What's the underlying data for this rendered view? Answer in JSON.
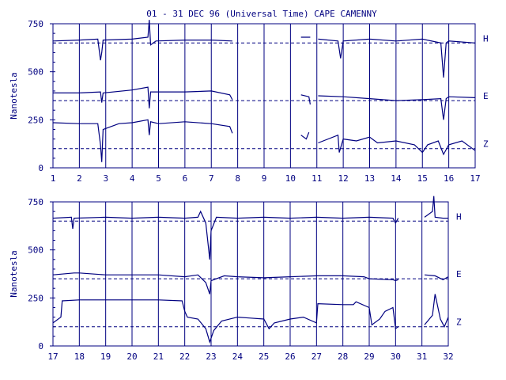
{
  "title": "01 - 31 DEC 96 (Universal Time) CAPE CAMENNY",
  "colors": {
    "trace": "#000080",
    "axis": "#000080",
    "background": "#ffffff"
  },
  "chart_data": [
    {
      "type": "line",
      "ylabel": "Nanotesla",
      "xlim": [
        1,
        17
      ],
      "ylim": [
        0,
        750
      ],
      "x_ticks": [
        "1",
        "2",
        "3",
        "4",
        "5",
        "6",
        "7",
        "8",
        "9",
        "10",
        "11",
        "12",
        "13",
        "14",
        "15",
        "16",
        "17"
      ],
      "y_ticks": [
        "0",
        "250",
        "500",
        "750"
      ],
      "grid": "vertical lines at each day",
      "baselines": [
        {
          "name": "H",
          "value": 650
        },
        {
          "name": "E",
          "value": 350
        },
        {
          "name": "Z",
          "value": 100
        }
      ],
      "series": [
        {
          "name": "H",
          "points": [
            [
              1,
              660
            ],
            [
              2,
              665
            ],
            [
              2.7,
              670
            ],
            [
              2.8,
              560
            ],
            [
              2.85,
              600
            ],
            [
              2.9,
              665
            ],
            [
              4,
              670
            ],
            [
              4.6,
              680
            ],
            [
              4.65,
              770
            ],
            [
              4.7,
              640
            ],
            [
              4.9,
              660
            ],
            [
              6,
              665
            ],
            [
              7,
              665
            ],
            [
              7.8,
              660
            ],
            [
              7.85,
              null
            ],
            [
              10.4,
              680
            ],
            [
              10.75,
              680
            ],
            [
              10.76,
              null
            ],
            [
              11.05,
              670
            ],
            [
              11.8,
              660
            ],
            [
              11.9,
              570
            ],
            [
              12,
              660
            ],
            [
              13,
              670
            ],
            [
              14,
              660
            ],
            [
              15,
              670
            ],
            [
              15.7,
              650
            ],
            [
              15.8,
              470
            ],
            [
              15.9,
              650
            ],
            [
              16,
              660
            ],
            [
              17,
              650
            ]
          ]
        },
        {
          "name": "E",
          "points": [
            [
              1,
              390
            ],
            [
              2,
              390
            ],
            [
              2.8,
              395
            ],
            [
              2.85,
              340
            ],
            [
              2.9,
              390
            ],
            [
              4,
              405
            ],
            [
              4.6,
              420
            ],
            [
              4.65,
              310
            ],
            [
              4.7,
              395
            ],
            [
              6,
              395
            ],
            [
              7,
              400
            ],
            [
              7.7,
              380
            ],
            [
              7.8,
              355
            ],
            [
              7.85,
              null
            ],
            [
              10.4,
              380
            ],
            [
              10.7,
              370
            ],
            [
              10.75,
              330
            ],
            [
              10.76,
              null
            ],
            [
              11.05,
              375
            ],
            [
              12,
              370
            ],
            [
              13,
              360
            ],
            [
              14,
              350
            ],
            [
              15,
              355
            ],
            [
              15.7,
              360
            ],
            [
              15.8,
              250
            ],
            [
              15.9,
              360
            ],
            [
              16,
              370
            ],
            [
              17,
              365
            ]
          ]
        },
        {
          "name": "Z",
          "points": [
            [
              1,
              235
            ],
            [
              2,
              230
            ],
            [
              2.7,
              230
            ],
            [
              2.8,
              120
            ],
            [
              2.85,
              30
            ],
            [
              2.9,
              200
            ],
            [
              3.5,
              230
            ],
            [
              4,
              235
            ],
            [
              4.6,
              250
            ],
            [
              4.65,
              170
            ],
            [
              4.7,
              240
            ],
            [
              5,
              230
            ],
            [
              6,
              240
            ],
            [
              7,
              230
            ],
            [
              7.7,
              215
            ],
            [
              7.8,
              180
            ],
            [
              7.85,
              null
            ],
            [
              10.4,
              170
            ],
            [
              10.6,
              150
            ],
            [
              10.7,
              185
            ],
            [
              10.75,
              null
            ],
            [
              11.05,
              130
            ],
            [
              11.8,
              170
            ],
            [
              11.85,
              80
            ],
            [
              12,
              150
            ],
            [
              12.5,
              140
            ],
            [
              13,
              160
            ],
            [
              13.3,
              130
            ],
            [
              14,
              140
            ],
            [
              14.7,
              120
            ],
            [
              15,
              80
            ],
            [
              15.2,
              120
            ],
            [
              15.6,
              140
            ],
            [
              15.8,
              70
            ],
            [
              16,
              120
            ],
            [
              16.5,
              140
            ],
            [
              17,
              90
            ]
          ]
        }
      ]
    },
    {
      "type": "line",
      "ylabel": "Nanotesla",
      "xlim": [
        17,
        32
      ],
      "ylim": [
        0,
        750
      ],
      "x_ticks": [
        "17",
        "18",
        "19",
        "20",
        "21",
        "22",
        "23",
        "24",
        "25",
        "26",
        "27",
        "28",
        "29",
        "30",
        "31",
        "32"
      ],
      "y_ticks": [
        "0",
        "250",
        "500",
        "750"
      ],
      "grid": "vertical lines at each day",
      "baselines": [
        {
          "name": "H",
          "value": 650
        },
        {
          "name": "E",
          "value": 350
        },
        {
          "name": "Z",
          "value": 100
        }
      ],
      "series": [
        {
          "name": "H",
          "points": [
            [
              17,
              665
            ],
            [
              17.7,
              670
            ],
            [
              17.75,
              610
            ],
            [
              17.8,
              665
            ],
            [
              19,
              670
            ],
            [
              20,
              665
            ],
            [
              21,
              670
            ],
            [
              22,
              665
            ],
            [
              22.5,
              670
            ],
            [
              22.6,
              700
            ],
            [
              22.8,
              640
            ],
            [
              22.95,
              450
            ],
            [
              23,
              600
            ],
            [
              23.2,
              670
            ],
            [
              24,
              665
            ],
            [
              25,
              670
            ],
            [
              26,
              665
            ],
            [
              27,
              670
            ],
            [
              28,
              665
            ],
            [
              29,
              670
            ],
            [
              29.9,
              665
            ],
            [
              30,
              640
            ],
            [
              30.1,
              665
            ],
            [
              30.11,
              null
            ],
            [
              31.1,
              670
            ],
            [
              31.4,
              700
            ],
            [
              31.45,
              780
            ],
            [
              31.5,
              670
            ],
            [
              31.8,
              665
            ],
            [
              32,
              665
            ]
          ]
        },
        {
          "name": "E",
          "points": [
            [
              17,
              370
            ],
            [
              17.8,
              380
            ],
            [
              18,
              380
            ],
            [
              19,
              370
            ],
            [
              20,
              370
            ],
            [
              21,
              370
            ],
            [
              22,
              360
            ],
            [
              22.5,
              370
            ],
            [
              22.8,
              330
            ],
            [
              22.95,
              270
            ],
            [
              23,
              340
            ],
            [
              23.5,
              365
            ],
            [
              24,
              360
            ],
            [
              25,
              355
            ],
            [
              26,
              360
            ],
            [
              27,
              365
            ],
            [
              28,
              365
            ],
            [
              28.8,
              360
            ],
            [
              29,
              350
            ],
            [
              29.9,
              345
            ],
            [
              30,
              340
            ],
            [
              30.1,
              345
            ],
            [
              30.11,
              null
            ],
            [
              31.1,
              370
            ],
            [
              31.5,
              365
            ],
            [
              31.8,
              345
            ],
            [
              32,
              360
            ]
          ]
        },
        {
          "name": "Z",
          "points": [
            [
              17,
              120
            ],
            [
              17.3,
              150
            ],
            [
              17.35,
              235
            ],
            [
              18,
              240
            ],
            [
              19,
              240
            ],
            [
              20,
              240
            ],
            [
              21,
              240
            ],
            [
              21.9,
              235
            ],
            [
              22,
              180
            ],
            [
              22.1,
              150
            ],
            [
              22.5,
              140
            ],
            [
              22.8,
              90
            ],
            [
              22.95,
              20
            ],
            [
              23.1,
              80
            ],
            [
              23.4,
              130
            ],
            [
              24,
              150
            ],
            [
              24.5,
              145
            ],
            [
              25,
              140
            ],
            [
              25.2,
              90
            ],
            [
              25.4,
              120
            ],
            [
              26,
              140
            ],
            [
              26.5,
              150
            ],
            [
              27,
              120
            ],
            [
              27.05,
              220
            ],
            [
              28,
              215
            ],
            [
              28.4,
              215
            ],
            [
              28.5,
              230
            ],
            [
              29,
              200
            ],
            [
              29.1,
              110
            ],
            [
              29.4,
              140
            ],
            [
              29.6,
              180
            ],
            [
              29.9,
              200
            ],
            [
              30,
              90
            ],
            [
              30.1,
              100
            ],
            [
              30.11,
              null
            ],
            [
              31.1,
              110
            ],
            [
              31.4,
              160
            ],
            [
              31.5,
              270
            ],
            [
              31.7,
              140
            ],
            [
              31.85,
              100
            ],
            [
              32,
              150
            ]
          ]
        }
      ]
    }
  ]
}
